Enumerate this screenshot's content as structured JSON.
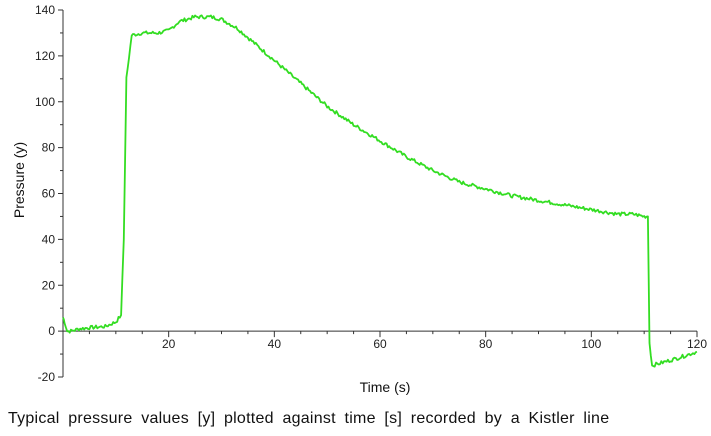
{
  "chart_data": {
    "type": "line",
    "title": "",
    "xlabel": "Time (s)",
    "ylabel": "Pressure (y)",
    "xlim": [
      0,
      120
    ],
    "ylim": [
      -20,
      140
    ],
    "x_ticks": [
      20,
      40,
      60,
      80,
      100,
      120
    ],
    "y_ticks": [
      -20,
      0,
      20,
      40,
      60,
      80,
      100,
      120,
      140
    ],
    "grid": false,
    "legend": "none",
    "line_color": "#33dd22",
    "series": [
      {
        "x": [
          0,
          0.3,
          0.8,
          1.5,
          3,
          5,
          8,
          10,
          11,
          11.5,
          12,
          13,
          15,
          18,
          20,
          22,
          25,
          28,
          30,
          33,
          36,
          40,
          45,
          50,
          55,
          60,
          65,
          70,
          75,
          80,
          85,
          90,
          95,
          100,
          105,
          108,
          110,
          110.7,
          111,
          111.5,
          113,
          116,
          120
        ],
        "y": [
          6,
          4,
          0,
          0,
          1,
          1.5,
          2,
          4,
          7,
          40,
          110,
          129,
          130,
          130,
          131,
          135,
          137,
          137,
          136,
          132,
          126,
          118,
          108,
          98,
          90,
          83,
          76,
          70,
          65,
          62,
          59,
          57,
          55,
          53,
          51,
          51,
          50,
          50,
          -5,
          -15,
          -14,
          -12,
          -9
        ]
      }
    ],
    "caption": "Typical pressure values [y] plotted against time [s] recorded by a Kistler line"
  }
}
